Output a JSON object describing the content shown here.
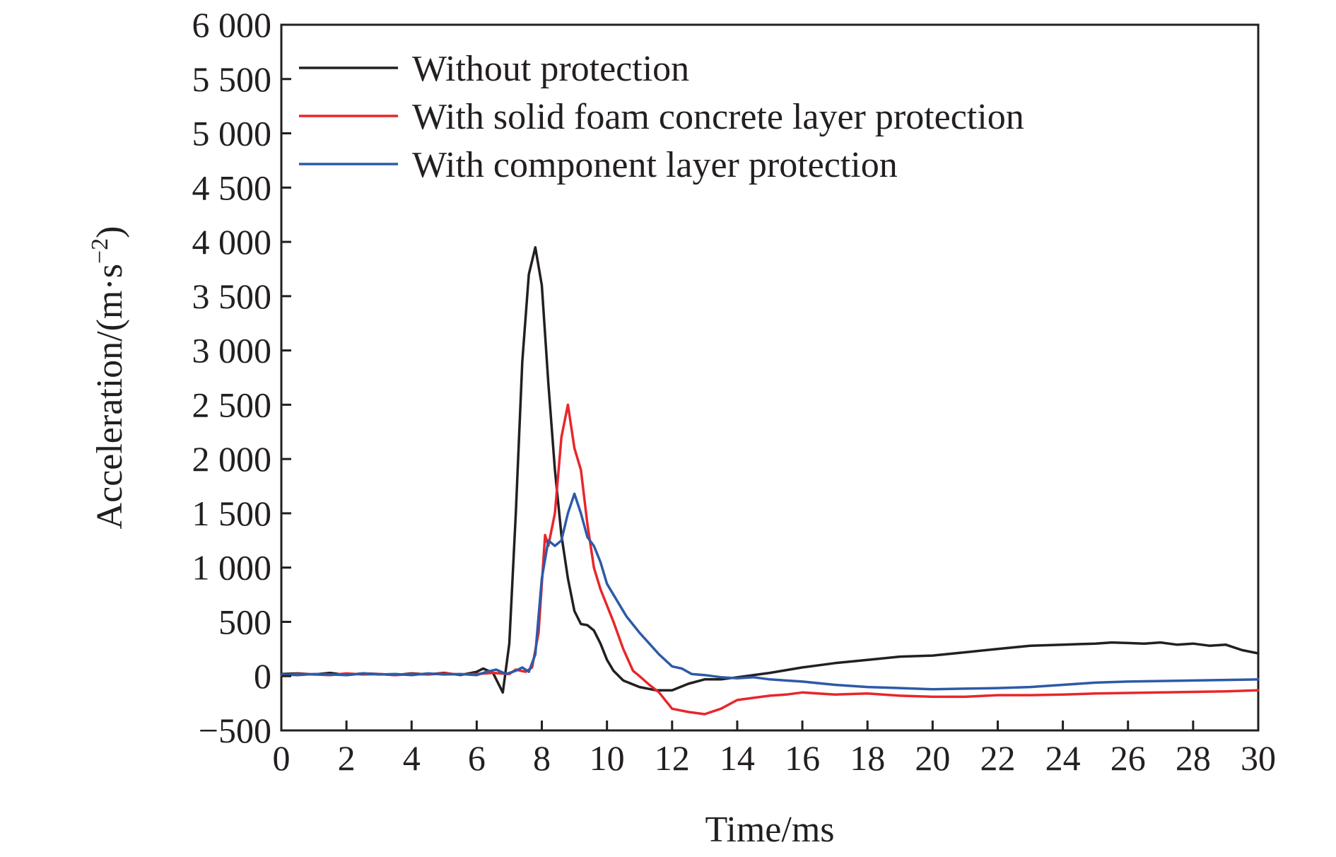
{
  "chart_data": {
    "type": "line",
    "xlabel": "Time/ms",
    "ylabel_main": "Acceleration/(m·s",
    "ylabel_sup": "−2",
    "ylabel_close": ")",
    "xlim": [
      0,
      30
    ],
    "ylim": [
      -500,
      6000
    ],
    "xticks": [
      0,
      2,
      4,
      6,
      8,
      10,
      12,
      14,
      16,
      18,
      20,
      22,
      24,
      26,
      28,
      30
    ],
    "xtick_labels": [
      "0",
      "2",
      "4",
      "6",
      "8",
      "10",
      "12",
      "14",
      "16",
      "18",
      "20",
      "22",
      "24",
      "26",
      "28",
      "30"
    ],
    "yticks": [
      -500,
      0,
      500,
      1000,
      1500,
      2000,
      2500,
      3000,
      3500,
      4000,
      4500,
      5000,
      5500,
      6000
    ],
    "ytick_labels": [
      "−500",
      "0",
      "500",
      "1 000",
      "1 500",
      "2 000",
      "2 500",
      "3 000",
      "3 500",
      "4 000",
      "4 500",
      "5 000",
      "5 500",
      "6 000"
    ],
    "grid": false,
    "legend_position": "top-left",
    "series": [
      {
        "name": "Without protection",
        "color": "#231f20",
        "x": [
          0,
          0.5,
          1,
          1.5,
          2,
          2.5,
          3,
          3.5,
          4,
          4.5,
          5,
          5.5,
          6,
          6.2,
          6.5,
          6.8,
          7.0,
          7.2,
          7.4,
          7.6,
          7.8,
          8.0,
          8.2,
          8.4,
          8.6,
          8.8,
          9.0,
          9.2,
          9.4,
          9.6,
          9.8,
          10.0,
          10.2,
          10.5,
          11.0,
          11.5,
          12.0,
          12.5,
          13.0,
          13.5,
          14.0,
          15.0,
          16.0,
          17.0,
          18.0,
          19.0,
          20.0,
          21.0,
          22.0,
          23.0,
          24.0,
          25.0,
          25.5,
          26.0,
          26.5,
          27.0,
          27.5,
          28.0,
          28.5,
          29.0,
          29.5,
          30.0
        ],
        "y": [
          20,
          25,
          15,
          30,
          10,
          25,
          20,
          10,
          25,
          15,
          30,
          10,
          40,
          70,
          30,
          -150,
          300,
          1500,
          2900,
          3700,
          3950,
          3600,
          2700,
          1900,
          1300,
          900,
          600,
          480,
          470,
          420,
          300,
          150,
          50,
          -40,
          -100,
          -130,
          -130,
          -70,
          -30,
          -30,
          -10,
          30,
          80,
          120,
          150,
          180,
          190,
          220,
          250,
          280,
          290,
          300,
          310,
          305,
          300,
          310,
          290,
          300,
          280,
          290,
          240,
          210
        ]
      },
      {
        "name": "With solid foam concrete layer protection",
        "color": "#e8262b",
        "x": [
          0,
          0.5,
          1,
          1.5,
          2,
          2.5,
          3,
          3.5,
          4,
          4.5,
          5,
          5.5,
          6,
          6.5,
          7.0,
          7.2,
          7.5,
          7.7,
          7.9,
          8.1,
          8.2,
          8.4,
          8.6,
          8.8,
          9.0,
          9.2,
          9.4,
          9.6,
          9.8,
          10.0,
          10.2,
          10.5,
          10.8,
          11.0,
          11.3,
          11.6,
          12.0,
          12.5,
          13.0,
          13.5,
          14.0,
          14.5,
          15.0,
          15.5,
          16.0,
          17.0,
          18.0,
          19.0,
          20.0,
          21.0,
          22.0,
          23.0,
          24.0,
          25.0,
          26.0,
          27.0,
          28.0,
          29.0,
          30.0
        ],
        "y": [
          10,
          20,
          15,
          10,
          25,
          15,
          20,
          10,
          20,
          15,
          25,
          15,
          20,
          30,
          20,
          60,
          40,
          80,
          400,
          1300,
          1200,
          1500,
          2200,
          2500,
          2100,
          1900,
          1400,
          1000,
          800,
          650,
          500,
          250,
          50,
          0,
          -80,
          -150,
          -300,
          -330,
          -350,
          -300,
          -220,
          -200,
          -180,
          -170,
          -150,
          -170,
          -160,
          -180,
          -190,
          -190,
          -175,
          -175,
          -170,
          -160,
          -155,
          -150,
          -145,
          -140,
          -130
        ]
      },
      {
        "name": "With component layer protection",
        "color": "#2d5aa8",
        "x": [
          0,
          0.5,
          1,
          1.5,
          2,
          2.5,
          3,
          3.5,
          4,
          4.5,
          5,
          5.5,
          6,
          6.3,
          6.6,
          6.9,
          7.2,
          7.4,
          7.6,
          7.8,
          8.0,
          8.2,
          8.4,
          8.6,
          8.8,
          9.0,
          9.2,
          9.4,
          9.6,
          9.8,
          10.0,
          10.3,
          10.6,
          11.0,
          11.3,
          11.6,
          12.0,
          12.3,
          12.6,
          13.0,
          13.5,
          14.0,
          14.5,
          15.0,
          15.5,
          16.0,
          17.0,
          18.0,
          19.0,
          20.0,
          21.0,
          22.0,
          23.0,
          24.0,
          25.0,
          26.0,
          27.0,
          28.0,
          29.0,
          30.0
        ],
        "y": [
          15,
          10,
          20,
          15,
          10,
          25,
          15,
          20,
          10,
          25,
          15,
          20,
          10,
          40,
          60,
          20,
          50,
          80,
          40,
          200,
          900,
          1250,
          1200,
          1250,
          1500,
          1680,
          1500,
          1280,
          1200,
          1050,
          850,
          700,
          550,
          400,
          300,
          200,
          90,
          70,
          20,
          10,
          -10,
          -20,
          -10,
          -30,
          -40,
          -50,
          -80,
          -100,
          -110,
          -120,
          -115,
          -110,
          -100,
          -80,
          -60,
          -50,
          -45,
          -40,
          -35,
          -30
        ]
      }
    ]
  }
}
